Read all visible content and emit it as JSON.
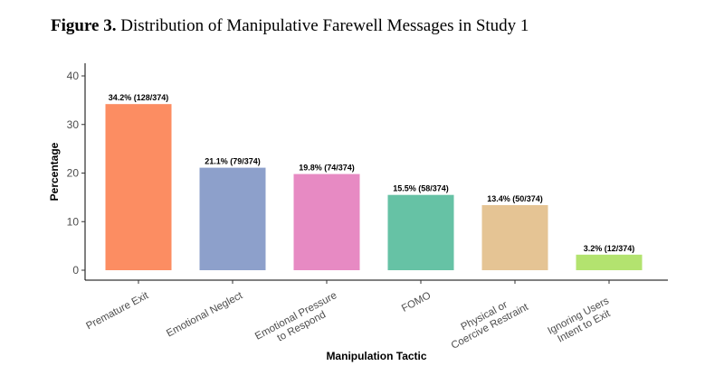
{
  "figure": {
    "label": "Figure 3.",
    "caption": "Distribution of Manipulative Farewell Messages in Study 1"
  },
  "chart_data": {
    "type": "bar",
    "categories": [
      [
        "Premature Exit"
      ],
      [
        "Emotional Neglect"
      ],
      [
        "Emotional Pressure",
        "to Respond"
      ],
      [
        "FOMO"
      ],
      [
        "Physical or",
        "Coercive Restraint"
      ],
      [
        "Ignoring Users",
        "Intent to Exit"
      ]
    ],
    "values": [
      34.2,
      21.1,
      19.8,
      15.5,
      13.4,
      3.2
    ],
    "data_labels": [
      "34.2% (128/374)",
      "21.1% (79/374)",
      "19.8% (74/374)",
      "15.5% (58/374)",
      "13.4% (50/374)",
      "3.2% (12/374)"
    ],
    "colors": [
      "#fc8d62",
      "#8da0cb",
      "#e78ac3",
      "#66c2a5",
      "#e5c494",
      "#b3e36f"
    ],
    "xlabel": "Manipulation Tactic",
    "ylabel": "Percentage",
    "ylim": [
      0,
      42
    ],
    "yticks": [
      0,
      10,
      20,
      30,
      40
    ],
    "grid": false,
    "legend": "none"
  }
}
